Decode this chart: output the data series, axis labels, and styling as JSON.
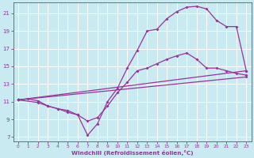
{
  "background_color": "#c8eaf0",
  "grid_color": "#aacccc",
  "line_color": "#993399",
  "marker": "D",
  "markersize": 2.0,
  "linewidth": 0.9,
  "xlabel": "Windchill (Refroidissement éolien,°C)",
  "ylabel_ticks": [
    7,
    9,
    11,
    13,
    15,
    17,
    19,
    21
  ],
  "xlabel_ticks": [
    0,
    1,
    2,
    3,
    4,
    5,
    6,
    7,
    8,
    9,
    10,
    11,
    12,
    13,
    14,
    15,
    16,
    17,
    18,
    19,
    20,
    21,
    22,
    23
  ],
  "xlim": [
    -0.5,
    23.5
  ],
  "ylim": [
    6.5,
    22.2
  ],
  "line1_x": [
    0,
    1,
    2,
    3,
    4,
    5,
    6,
    7,
    8,
    9,
    10,
    11,
    12,
    13,
    14,
    15,
    16,
    17,
    18,
    19,
    20,
    21,
    22,
    23
  ],
  "line1_y": [
    11.2,
    11.3,
    11.1,
    10.5,
    10.2,
    10.0,
    9.5,
    7.2,
    8.5,
    11.0,
    12.5,
    14.8,
    16.8,
    19.0,
    19.2,
    20.4,
    21.2,
    21.7,
    21.8,
    21.5,
    20.2,
    19.5,
    19.5,
    14.5
  ],
  "line2_x": [
    0,
    2,
    3,
    4,
    5,
    6,
    7,
    8,
    9,
    10,
    11,
    12,
    13,
    14,
    15,
    16,
    17,
    18,
    19,
    20,
    21,
    22,
    23
  ],
  "line2_y": [
    11.2,
    10.9,
    10.5,
    10.2,
    9.8,
    9.5,
    8.8,
    9.2,
    10.5,
    12.0,
    13.2,
    14.5,
    14.8,
    15.3,
    15.8,
    16.2,
    16.5,
    15.8,
    14.8,
    14.8,
    14.5,
    14.2,
    14.0
  ],
  "line3_x": [
    0,
    23
  ],
  "line3_y": [
    11.2,
    13.8
  ],
  "line4_x": [
    0,
    23
  ],
  "line4_y": [
    11.2,
    14.5
  ]
}
